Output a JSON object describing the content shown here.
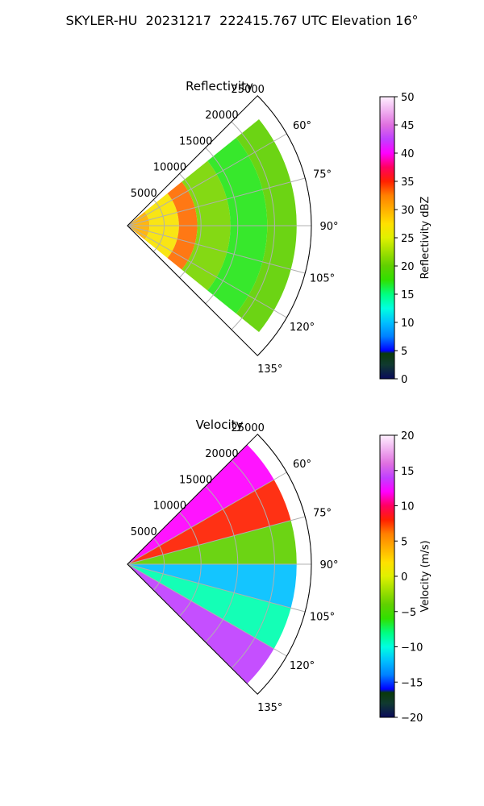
{
  "title": "SKYLER-HU  20231217  222415.767 UTC Elevation 16°",
  "colors": {
    "grid": "#b0b0b0",
    "outline": "#000000",
    "background": "#ffffff"
  },
  "chart_data": [
    {
      "type": "heatmap",
      "projection": "polar-sector",
      "title": "Reflectivity",
      "radial_label": "Meters",
      "radial_ticks": [
        5000,
        10000,
        15000,
        20000,
        25000
      ],
      "radial_range": [
        0,
        25000
      ],
      "azimuth_range_deg": [
        45,
        135
      ],
      "azimuth_ticks": [
        "60°",
        "75°",
        "90°",
        "105°",
        "120°",
        "135°"
      ],
      "azimuth_tick_values": [
        60,
        75,
        90,
        105,
        120,
        135
      ],
      "grid": true,
      "colorbar": {
        "label": "Reflectivity dBZ",
        "range": [
          0,
          50
        ],
        "ticks": [
          "0",
          "5",
          "10",
          "15",
          "20",
          "25",
          "30",
          "35",
          "40",
          "45",
          "50"
        ],
        "tick_values": [
          0,
          5,
          10,
          15,
          20,
          25,
          30,
          35,
          40,
          45,
          50
        ],
        "stops": [
          [
            0,
            "#0a0a5a"
          ],
          [
            2.5,
            "#103a30"
          ],
          [
            4.5,
            "#0a3a0a"
          ],
          [
            5,
            "#0000ff"
          ],
          [
            7.5,
            "#0080ff"
          ],
          [
            10,
            "#00c0ff"
          ],
          [
            12.5,
            "#00ffe0"
          ],
          [
            15,
            "#00ff80"
          ],
          [
            17.5,
            "#30e000"
          ],
          [
            20,
            "#60d000"
          ],
          [
            22.5,
            "#a0e000"
          ],
          [
            25,
            "#e0f000"
          ],
          [
            27.5,
            "#ffe000"
          ],
          [
            30,
            "#ffb000"
          ],
          [
            32.5,
            "#ff8000"
          ],
          [
            35,
            "#ff2000"
          ],
          [
            37.5,
            "#ff0060"
          ],
          [
            40,
            "#ff00ff"
          ],
          [
            42.5,
            "#c040ff"
          ],
          [
            45,
            "#e070e0"
          ],
          [
            47.5,
            "#f0b0f0"
          ],
          [
            50,
            "#fff0ff"
          ]
        ]
      },
      "field": {
        "range_extent_m": [
          0,
          23000
        ],
        "description_values": "reflectivity in dBZ by zone",
        "zones": [
          {
            "r": [
              0,
              3000
            ],
            "value": 30
          },
          {
            "r": [
              3000,
              7000
            ],
            "value": 27
          },
          {
            "r": [
              7000,
              9500
            ],
            "value": 33
          },
          {
            "r": [
              9500,
              14000
            ],
            "value": 21
          },
          {
            "r": [
              14000,
              19000
            ],
            "value": 17
          },
          {
            "r": [
              19000,
              23000
            ],
            "value": 20
          }
        ]
      }
    },
    {
      "type": "heatmap",
      "projection": "polar-sector",
      "title": "Velocity",
      "radial_label": "Meters",
      "radial_ticks": [
        5000,
        10000,
        15000,
        20000,
        25000
      ],
      "radial_range": [
        0,
        25000
      ],
      "azimuth_range_deg": [
        45,
        135
      ],
      "azimuth_ticks": [
        "60°",
        "75°",
        "90°",
        "105°",
        "120°",
        "135°"
      ],
      "azimuth_tick_values": [
        60,
        75,
        90,
        105,
        120,
        135
      ],
      "grid": true,
      "colorbar": {
        "label": "Velocity (m/s)",
        "range": [
          -20,
          20
        ],
        "ticks": [
          "−20",
          "−15",
          "−10",
          "−5",
          "0",
          "5",
          "10",
          "15",
          "20"
        ],
        "tick_values": [
          -20,
          -15,
          -10,
          -5,
          0,
          5,
          10,
          15,
          20
        ],
        "stops": [
          [
            -20,
            "#0a0a5a"
          ],
          [
            -18,
            "#103a30"
          ],
          [
            -16.5,
            "#0a3a0a"
          ],
          [
            -16,
            "#0000ff"
          ],
          [
            -14,
            "#0080ff"
          ],
          [
            -12,
            "#00c0ff"
          ],
          [
            -10,
            "#00ffe0"
          ],
          [
            -8,
            "#00ff80"
          ],
          [
            -6,
            "#30e000"
          ],
          [
            -4,
            "#60d000"
          ],
          [
            -2,
            "#a0e000"
          ],
          [
            0,
            "#e0f000"
          ],
          [
            2,
            "#ffe000"
          ],
          [
            4,
            "#ffb000"
          ],
          [
            6,
            "#ff8000"
          ],
          [
            8,
            "#ff2000"
          ],
          [
            10,
            "#ff0060"
          ],
          [
            12,
            "#ff00ff"
          ],
          [
            14,
            "#c040ff"
          ],
          [
            16,
            "#e070e0"
          ],
          [
            18,
            "#f0b0f0"
          ],
          [
            20,
            "#fff0ff"
          ]
        ]
      },
      "field": {
        "range_extent_m": [
          0,
          23000
        ],
        "description_values": "radial velocity in m/s by sector",
        "sectors": [
          {
            "az": [
              45,
              60
            ],
            "value": 12
          },
          {
            "az": [
              60,
              75
            ],
            "value": 8
          },
          {
            "az": [
              75,
              90
            ],
            "value": -4
          },
          {
            "az": [
              90,
              105
            ],
            "value": -12
          },
          {
            "az": [
              105,
              120
            ],
            "value": -9
          },
          {
            "az": [
              120,
              135
            ],
            "value": 14
          }
        ]
      }
    }
  ]
}
